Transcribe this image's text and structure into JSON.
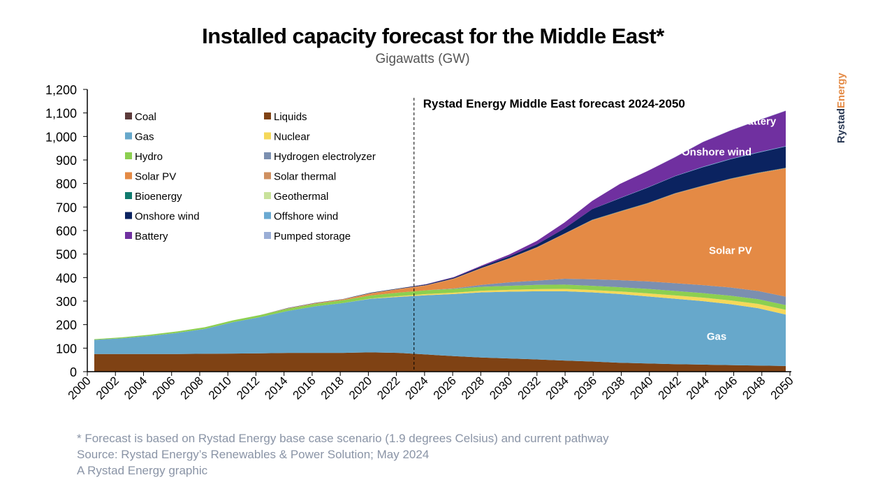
{
  "title": "Installed capacity forecast for the Middle East*",
  "subtitle": "Gigawatts (GW)",
  "footnotes": [
    "* Forecast is based on Rystad Energy base case scenario (1.9 degrees Celsius) and current pathway",
    "Source: Rystad Energy’s Renewables & Power Solution; May 2024",
    "A Rystad Energy graphic"
  ],
  "logo": {
    "part1": "Rystad",
    "part2": "Energy",
    "color1": "#2b3a55",
    "color2": "#e48a45"
  },
  "chart_data": {
    "type": "area",
    "stacked": true,
    "title": "Installed capacity forecast for the Middle East*",
    "ylabel": "Gigawatts (GW)",
    "xlabel": "",
    "ylim": [
      0,
      1200
    ],
    "yticks": [
      "0",
      "100",
      "200",
      "300",
      "400",
      "500",
      "600",
      "700",
      "800",
      "900",
      "1,000",
      "1,100",
      "1,200"
    ],
    "xticks": [
      "2000",
      "2002",
      "2004",
      "2006",
      "2008",
      "2010",
      "2012",
      "2014",
      "2016",
      "2018",
      "2020",
      "2022",
      "2024",
      "2026",
      "2028",
      "2030",
      "2032",
      "2034",
      "2036",
      "2038",
      "2040",
      "2042",
      "2044",
      "2046",
      "2048",
      "2050"
    ],
    "x": [
      2000,
      2002,
      2004,
      2006,
      2008,
      2010,
      2012,
      2014,
      2016,
      2018,
      2020,
      2022,
      2024,
      2026,
      2028,
      2030,
      2032,
      2034,
      2036,
      2038,
      2040,
      2042,
      2044,
      2046,
      2048,
      2050
    ],
    "forecast_annotation": "Rystad Energy Middle East forecast 2024-2050",
    "forecast_start": 2023,
    "legend_position": "top-left",
    "series": [
      {
        "name": "Coal",
        "color": "#5c3b3b",
        "values": [
          0,
          0,
          0,
          0,
          0,
          0,
          0,
          0,
          0,
          2,
          2,
          2,
          1,
          0,
          0,
          0,
          0,
          0,
          0,
          0,
          0,
          0,
          0,
          0,
          0,
          0
        ]
      },
      {
        "name": "Liquids",
        "color": "#7f4214",
        "values": [
          75,
          75,
          75,
          75,
          76,
          77,
          78,
          80,
          80,
          78,
          80,
          78,
          72,
          66,
          60,
          56,
          52,
          47,
          43,
          38,
          35,
          32,
          30,
          28,
          26,
          24
        ]
      },
      {
        "name": "Gas",
        "color": "#67a8cb",
        "values": [
          60,
          67,
          77,
          90,
          106,
          133,
          154,
          178,
          198,
          212,
          228,
          238,
          252,
          264,
          277,
          284,
          290,
          295,
          294,
          292,
          285,
          278,
          270,
          259,
          244,
          219
        ]
      },
      {
        "name": "Nuclear",
        "color": "#f5d85a",
        "values": [
          0,
          0,
          0,
          0,
          0,
          0,
          0,
          0,
          0,
          0,
          1,
          3,
          5,
          6,
          7,
          8,
          9,
          10,
          10,
          11,
          13,
          14,
          15,
          16,
          18,
          20
        ]
      },
      {
        "name": "Hydro",
        "color": "#8ccf50",
        "values": [
          3,
          4,
          5,
          6,
          7,
          8,
          9,
          10,
          11,
          12,
          13,
          15,
          16,
          16,
          17,
          17,
          18,
          18,
          18,
          18,
          19,
          19,
          19,
          20,
          20,
          20
        ]
      },
      {
        "name": "Hydrogen electrolyzer",
        "color": "#7b8fb0",
        "values": [
          0,
          0,
          0,
          0,
          0,
          0,
          0,
          0,
          0,
          0,
          0,
          0,
          0,
          2,
          8,
          15,
          18,
          25,
          28,
          30,
          32,
          33,
          34,
          35,
          35,
          36
        ]
      },
      {
        "name": "Solar PV",
        "color": "#e48a45",
        "values": [
          0,
          0,
          0,
          0,
          0,
          0,
          0,
          1,
          2,
          3,
          8,
          14,
          20,
          40,
          70,
          100,
          140,
          190,
          250,
          290,
          330,
          380,
          420,
          460,
          500,
          545
        ]
      },
      {
        "name": "Solar thermal",
        "color": "#cf9060",
        "values": [
          0,
          0,
          0,
          0,
          0,
          0,
          0,
          1,
          1,
          1,
          2,
          2,
          2,
          2,
          2,
          2,
          2,
          2,
          2,
          2,
          2,
          2,
          2,
          2,
          2,
          2
        ]
      },
      {
        "name": "Bioenergy",
        "color": "#0f7a6e",
        "values": [
          0,
          0,
          0,
          0,
          0,
          0,
          0,
          0,
          0,
          0,
          0,
          0,
          0,
          0,
          0,
          0,
          0,
          0,
          1,
          1,
          1,
          1,
          1,
          1,
          1,
          1
        ]
      },
      {
        "name": "Geothermal",
        "color": "#c9e29b",
        "values": [
          0,
          0,
          0,
          0,
          0,
          0,
          0,
          0,
          0,
          0,
          0,
          0,
          0,
          0,
          0,
          0,
          0,
          0,
          0,
          0,
          0,
          0,
          0,
          0,
          0,
          0
        ]
      },
      {
        "name": "Onshore wind",
        "color": "#0b2360",
        "values": [
          0,
          0,
          0,
          0,
          0,
          0,
          0,
          1,
          1,
          1,
          2,
          2,
          3,
          4,
          6,
          8,
          12,
          22,
          45,
          55,
          65,
          72,
          78,
          82,
          85,
          90
        ]
      },
      {
        "name": "Offshore wind",
        "color": "#6aa9d2",
        "values": [
          0,
          0,
          0,
          0,
          0,
          0,
          0,
          0,
          0,
          0,
          0,
          0,
          0,
          0,
          0,
          0,
          0,
          0,
          0,
          1,
          1,
          1,
          2,
          2,
          2,
          2
        ]
      },
      {
        "name": "Battery",
        "color": "#7030a0",
        "values": [
          0,
          0,
          0,
          0,
          0,
          0,
          0,
          0,
          0,
          0,
          0,
          0,
          1,
          2,
          4,
          8,
          15,
          25,
          35,
          60,
          70,
          80,
          105,
          120,
          135,
          150
        ]
      },
      {
        "name": "Pumped storage",
        "color": "#9aaed6",
        "values": [
          0,
          0,
          0,
          0,
          0,
          0,
          0,
          0,
          0,
          0,
          0,
          0,
          0,
          0,
          0,
          0,
          0,
          0,
          0,
          0,
          0,
          1,
          1,
          1,
          1,
          1
        ]
      }
    ],
    "area_labels": [
      {
        "text": "Battery",
        "year": 2048,
        "value": 1050
      },
      {
        "text": "Onshore wind",
        "year": 2045,
        "value": 920
      },
      {
        "text": "Solar PV",
        "year": 2046,
        "value": 500
      },
      {
        "text": "Gas",
        "year": 2045,
        "value": 135
      }
    ]
  }
}
